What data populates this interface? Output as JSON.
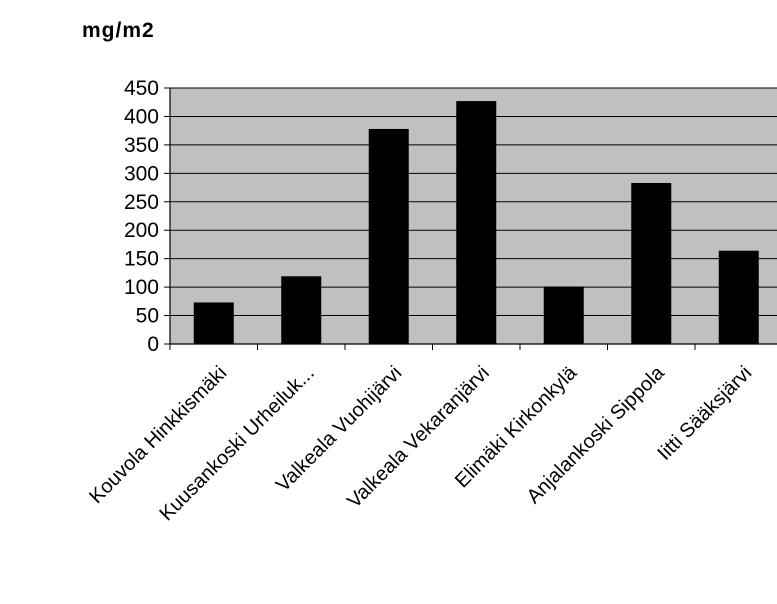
{
  "chart_data": {
    "type": "bar",
    "ylabel": "mg/m2",
    "categories": [
      "Kouvola Hinkkismäki",
      "Kuusankoski Urheiluk...",
      "Valkeala Vuohijärvi",
      "Valkeala Vekaranjärvi",
      "Elimäki Kirkonkylä",
      "Anjalankoski Sippola",
      "Iitti Sääksjärvi"
    ],
    "values": [
      73,
      119,
      378,
      427,
      101,
      283,
      164
    ],
    "ylim": [
      0,
      450
    ],
    "yticks": [
      "0",
      "50",
      "100",
      "150",
      "200",
      "250",
      "300",
      "350",
      "400",
      "450"
    ],
    "grid": true,
    "legend": "none",
    "colors": {
      "plot_background": "#c0c0c0",
      "bar": "#000000",
      "gridline": "#000000"
    }
  }
}
